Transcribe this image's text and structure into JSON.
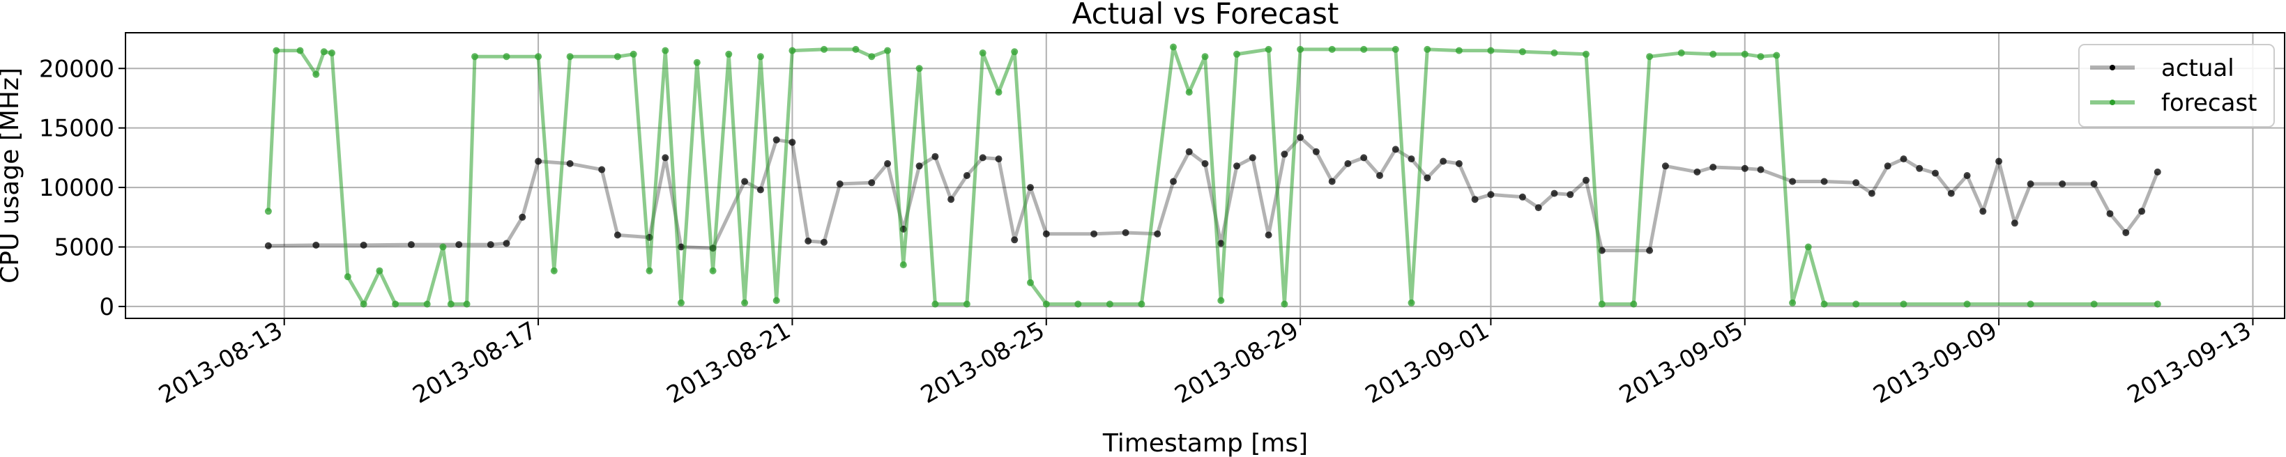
{
  "chart_data": {
    "type": "line",
    "title": "Actual vs Forecast",
    "xlabel": "Timestamp [ms]",
    "ylabel": "CPU usage [MHz]",
    "x_ticks": [
      "2013-08-13",
      "2013-08-17",
      "2013-08-21",
      "2013-08-25",
      "2013-08-29",
      "2013-09-01",
      "2013-09-05",
      "2013-09-09",
      "2013-09-13"
    ],
    "y_ticks": [
      0,
      5000,
      10000,
      15000,
      20000
    ],
    "xlim": [
      "2013-08-10T12:00",
      "2013-09-13T12:00"
    ],
    "ylim": [
      -1000,
      23000
    ],
    "grid": true,
    "legend_position": "top-right",
    "series": [
      {
        "name": "actual",
        "color": "#000000",
        "points": [
          [
            "2013-08-12T18:00",
            5100
          ],
          [
            "2013-08-13T12:00",
            5150
          ],
          [
            "2013-08-14T06:00",
            5150
          ],
          [
            "2013-08-15T00:00",
            5200
          ],
          [
            "2013-08-15T18:00",
            5200
          ],
          [
            "2013-08-16T06:00",
            5200
          ],
          [
            "2013-08-16T12:00",
            5300
          ],
          [
            "2013-08-16T18:00",
            7500
          ],
          [
            "2013-08-17T00:00",
            12200
          ],
          [
            "2013-08-17T12:00",
            12000
          ],
          [
            "2013-08-18T00:00",
            11500
          ],
          [
            "2013-08-18T06:00",
            6000
          ],
          [
            "2013-08-18T18:00",
            5800
          ],
          [
            "2013-08-19T00:00",
            12500
          ],
          [
            "2013-08-19T06:00",
            5000
          ],
          [
            "2013-08-19T18:00",
            4900
          ],
          [
            "2013-08-20T06:00",
            10500
          ],
          [
            "2013-08-20T12:00",
            9800
          ],
          [
            "2013-08-20T18:00",
            14000
          ],
          [
            "2013-08-21T00:00",
            13800
          ],
          [
            "2013-08-21T06:00",
            5500
          ],
          [
            "2013-08-21T12:00",
            5400
          ],
          [
            "2013-08-21T18:00",
            10300
          ],
          [
            "2013-08-22T06:00",
            10400
          ],
          [
            "2013-08-22T12:00",
            12000
          ],
          [
            "2013-08-22T18:00",
            6500
          ],
          [
            "2013-08-23T00:00",
            11800
          ],
          [
            "2013-08-23T06:00",
            12600
          ],
          [
            "2013-08-23T12:00",
            9000
          ],
          [
            "2013-08-23T18:00",
            11000
          ],
          [
            "2013-08-24T00:00",
            12500
          ],
          [
            "2013-08-24T06:00",
            12400
          ],
          [
            "2013-08-24T12:00",
            5600
          ],
          [
            "2013-08-24T18:00",
            10000
          ],
          [
            "2013-08-25T00:00",
            6100
          ],
          [
            "2013-08-25T18:00",
            6100
          ],
          [
            "2013-08-26T06:00",
            6200
          ],
          [
            "2013-08-26T18:00",
            6100
          ],
          [
            "2013-08-27T00:00",
            10500
          ],
          [
            "2013-08-27T06:00",
            13000
          ],
          [
            "2013-08-27T12:00",
            12000
          ],
          [
            "2013-08-27T18:00",
            5300
          ],
          [
            "2013-08-28T00:00",
            11800
          ],
          [
            "2013-08-28T06:00",
            12500
          ],
          [
            "2013-08-28T12:00",
            6000
          ],
          [
            "2013-08-28T18:00",
            12800
          ],
          [
            "2013-08-29T00:00",
            14200
          ],
          [
            "2013-08-29T06:00",
            13000
          ],
          [
            "2013-08-29T12:00",
            10500
          ],
          [
            "2013-08-29T18:00",
            12000
          ],
          [
            "2013-08-30T00:00",
            12500
          ],
          [
            "2013-08-30T06:00",
            11000
          ],
          [
            "2013-08-30T12:00",
            13200
          ],
          [
            "2013-08-30T18:00",
            12400
          ],
          [
            "2013-08-31T00:00",
            10800
          ],
          [
            "2013-08-31T06:00",
            12200
          ],
          [
            "2013-08-31T12:00",
            12000
          ],
          [
            "2013-08-31T18:00",
            9000
          ],
          [
            "2013-09-01T00:00",
            9400
          ],
          [
            "2013-09-01T12:00",
            9200
          ],
          [
            "2013-09-01T18:00",
            8300
          ],
          [
            "2013-09-02T00:00",
            9500
          ],
          [
            "2013-09-02T06:00",
            9400
          ],
          [
            "2013-09-02T12:00",
            10600
          ],
          [
            "2013-09-02T18:00",
            4700
          ],
          [
            "2013-09-03T12:00",
            4700
          ],
          [
            "2013-09-03T18:00",
            11800
          ],
          [
            "2013-09-04T06:00",
            11300
          ],
          [
            "2013-09-04T12:00",
            11700
          ],
          [
            "2013-09-05T00:00",
            11600
          ],
          [
            "2013-09-05T06:00",
            11500
          ],
          [
            "2013-09-05T18:00",
            10500
          ],
          [
            "2013-09-06T06:00",
            10500
          ],
          [
            "2013-09-06T18:00",
            10400
          ],
          [
            "2013-09-07T00:00",
            9500
          ],
          [
            "2013-09-07T06:00",
            11800
          ],
          [
            "2013-09-07T12:00",
            12400
          ],
          [
            "2013-09-07T18:00",
            11600
          ],
          [
            "2013-09-08T00:00",
            11200
          ],
          [
            "2013-09-08T06:00",
            9500
          ],
          [
            "2013-09-08T12:00",
            11000
          ],
          [
            "2013-09-08T18:00",
            8000
          ],
          [
            "2013-09-09T00:00",
            12200
          ],
          [
            "2013-09-09T06:00",
            7000
          ],
          [
            "2013-09-09T12:00",
            10300
          ],
          [
            "2013-09-10T00:00",
            10300
          ],
          [
            "2013-09-10T12:00",
            10300
          ],
          [
            "2013-09-10T18:00",
            7800
          ],
          [
            "2013-09-11T00:00",
            6200
          ],
          [
            "2013-09-11T06:00",
            8000
          ],
          [
            "2013-09-11T12:00",
            11300
          ]
        ]
      },
      {
        "name": "forecast",
        "color": "#2ca02c",
        "points": [
          [
            "2013-08-12T18:00",
            8000
          ],
          [
            "2013-08-12T21:00",
            21500
          ],
          [
            "2013-08-13T06:00",
            21500
          ],
          [
            "2013-08-13T12:00",
            19500
          ],
          [
            "2013-08-13T15:00",
            21400
          ],
          [
            "2013-08-13T18:00",
            21300
          ],
          [
            "2013-08-14T00:00",
            2500
          ],
          [
            "2013-08-14T06:00",
            200
          ],
          [
            "2013-08-14T12:00",
            3000
          ],
          [
            "2013-08-14T18:00",
            200
          ],
          [
            "2013-08-15T06:00",
            200
          ],
          [
            "2013-08-15T12:00",
            5000
          ],
          [
            "2013-08-15T15:00",
            200
          ],
          [
            "2013-08-15T21:00",
            200
          ],
          [
            "2013-08-16T00:00",
            21000
          ],
          [
            "2013-08-16T12:00",
            21000
          ],
          [
            "2013-08-17T00:00",
            21000
          ],
          [
            "2013-08-17T06:00",
            3000
          ],
          [
            "2013-08-17T12:00",
            21000
          ],
          [
            "2013-08-18T06:00",
            21000
          ],
          [
            "2013-08-18T12:00",
            21200
          ],
          [
            "2013-08-18T18:00",
            3000
          ],
          [
            "2013-08-19T00:00",
            21500
          ],
          [
            "2013-08-19T06:00",
            300
          ],
          [
            "2013-08-19T12:00",
            20500
          ],
          [
            "2013-08-19T18:00",
            3000
          ],
          [
            "2013-08-20T00:00",
            21200
          ],
          [
            "2013-08-20T06:00",
            300
          ],
          [
            "2013-08-20T12:00",
            21000
          ],
          [
            "2013-08-20T18:00",
            500
          ],
          [
            "2013-08-21T00:00",
            21500
          ],
          [
            "2013-08-21T12:00",
            21600
          ],
          [
            "2013-08-22T00:00",
            21600
          ],
          [
            "2013-08-22T06:00",
            21000
          ],
          [
            "2013-08-22T12:00",
            21500
          ],
          [
            "2013-08-22T18:00",
            3500
          ],
          [
            "2013-08-23T00:00",
            20000
          ],
          [
            "2013-08-23T06:00",
            200
          ],
          [
            "2013-08-23T18:00",
            200
          ],
          [
            "2013-08-24T00:00",
            21300
          ],
          [
            "2013-08-24T06:00",
            18000
          ],
          [
            "2013-08-24T12:00",
            21400
          ],
          [
            "2013-08-24T18:00",
            2000
          ],
          [
            "2013-08-25T00:00",
            200
          ],
          [
            "2013-08-25T12:00",
            200
          ],
          [
            "2013-08-26T00:00",
            200
          ],
          [
            "2013-08-26T12:00",
            200
          ],
          [
            "2013-08-27T00:00",
            21800
          ],
          [
            "2013-08-27T06:00",
            18000
          ],
          [
            "2013-08-27T12:00",
            21000
          ],
          [
            "2013-08-27T18:00",
            500
          ],
          [
            "2013-08-28T00:00",
            21200
          ],
          [
            "2013-08-28T12:00",
            21600
          ],
          [
            "2013-08-28T18:00",
            200
          ],
          [
            "2013-08-29T00:00",
            21600
          ],
          [
            "2013-08-29T12:00",
            21600
          ],
          [
            "2013-08-30T00:00",
            21600
          ],
          [
            "2013-08-30T12:00",
            21600
          ],
          [
            "2013-08-30T18:00",
            300
          ],
          [
            "2013-08-31T00:00",
            21600
          ],
          [
            "2013-08-31T12:00",
            21500
          ],
          [
            "2013-09-01T00:00",
            21500
          ],
          [
            "2013-09-01T12:00",
            21400
          ],
          [
            "2013-09-02T00:00",
            21300
          ],
          [
            "2013-09-02T12:00",
            21200
          ],
          [
            "2013-09-02T18:00",
            200
          ],
          [
            "2013-09-03T06:00",
            200
          ],
          [
            "2013-09-03T12:00",
            21000
          ],
          [
            "2013-09-04T00:00",
            21300
          ],
          [
            "2013-09-04T12:00",
            21200
          ],
          [
            "2013-09-05T00:00",
            21200
          ],
          [
            "2013-09-05T06:00",
            21000
          ],
          [
            "2013-09-05T12:00",
            21100
          ],
          [
            "2013-09-05T18:00",
            300
          ],
          [
            "2013-09-06T00:00",
            5000
          ],
          [
            "2013-09-06T06:00",
            200
          ],
          [
            "2013-09-06T18:00",
            200
          ],
          [
            "2013-09-07T12:00",
            200
          ],
          [
            "2013-09-08T12:00",
            200
          ],
          [
            "2013-09-09T12:00",
            200
          ],
          [
            "2013-09-10T12:00",
            200
          ],
          [
            "2013-09-11T12:00",
            200
          ]
        ]
      }
    ]
  }
}
